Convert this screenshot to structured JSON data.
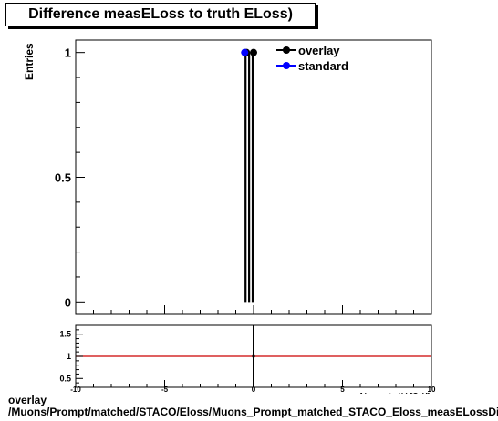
{
  "chart_data": {
    "type": "scatter",
    "title": "Difference measELoss to truth ELoss)",
    "ylabel": "Entries",
    "xlabel": "Δ(meas, truth) [GeV]",
    "xlim": [
      -10,
      10
    ],
    "main_panel": {
      "ylim": [
        -0.05,
        1.05
      ],
      "yticks": [
        0,
        0.5,
        1
      ],
      "ytick_labels": [
        "0",
        "0.5",
        "1"
      ],
      "series": [
        {
          "name": "overlay",
          "color": "#000000",
          "points": [
            {
              "x": 0.0,
              "y": 1
            },
            {
              "x": -0.4,
              "y": 1
            }
          ]
        },
        {
          "name": "standard",
          "color": "#0000ff",
          "points": [
            {
              "x": -0.5,
              "y": 1
            }
          ]
        }
      ],
      "error_bars_x": [
        -0.45,
        -0.25,
        -0.05
      ]
    },
    "ratio_panel": {
      "ylim": [
        0.3,
        1.7
      ],
      "yticks": [
        0.5,
        1,
        1.5
      ],
      "ytick_labels": [
        "0.5",
        "1",
        "1.5"
      ],
      "reference_line": 1,
      "reference_color": "#cc0000",
      "points": [
        {
          "x": 0.0,
          "y": 1
        }
      ]
    },
    "xticks": [
      -10,
      -5,
      0,
      5,
      10
    ],
    "xtick_labels": [
      "-10",
      "-5",
      "0",
      "5",
      "10"
    ],
    "legend": {
      "placement": "top-right",
      "entries": [
        "overlay",
        "standard"
      ]
    }
  },
  "footer": {
    "line1": "overlay",
    "line2": "/Muons/Prompt/matched/STACO/Eloss/Muons_Prompt_matched_STACO_Eloss_measELossDiff"
  }
}
